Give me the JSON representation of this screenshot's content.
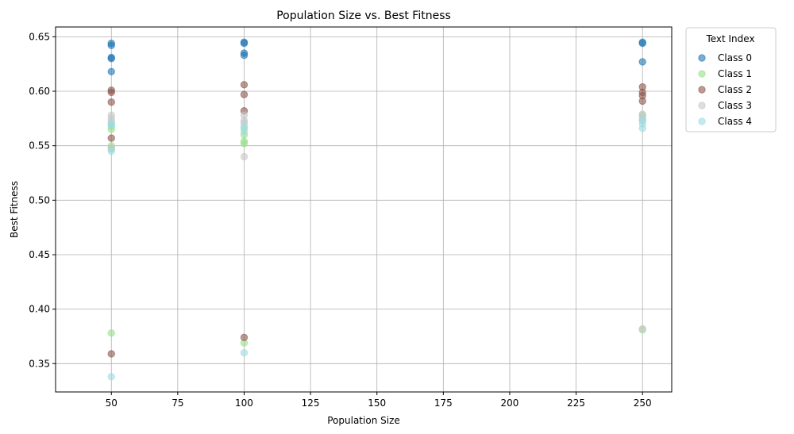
{
  "chart_data": {
    "type": "scatter",
    "title": "Population Size vs. Best Fitness",
    "xlabel": "Population Size",
    "ylabel": "Best Fitness",
    "xlim": [
      29,
      261
    ],
    "ylim": [
      0.324,
      0.659
    ],
    "xticks": [
      50,
      75,
      100,
      125,
      150,
      175,
      200,
      225,
      250
    ],
    "yticks": [
      0.35,
      0.4,
      0.45,
      0.5,
      0.55,
      0.6,
      0.65
    ],
    "ytick_labels": [
      "0.35",
      "0.40",
      "0.45",
      "0.50",
      "0.55",
      "0.60",
      "0.65"
    ],
    "grid": true,
    "legend_title": "Text Index",
    "legend_position": "outside-right-top",
    "series": [
      {
        "name": "Class 0",
        "color": "#1f77b4",
        "points": [
          [
            50,
            0.644
          ],
          [
            50,
            0.642
          ],
          [
            50,
            0.631
          ],
          [
            50,
            0.63
          ],
          [
            50,
            0.618
          ],
          [
            100,
            0.645
          ],
          [
            100,
            0.644
          ],
          [
            100,
            0.635
          ],
          [
            100,
            0.633
          ],
          [
            250,
            0.645
          ],
          [
            250,
            0.644
          ],
          [
            250,
            0.627
          ]
        ]
      },
      {
        "name": "Class 1",
        "color": "#98df8a",
        "points": [
          [
            50,
            0.568
          ],
          [
            50,
            0.565
          ],
          [
            50,
            0.55
          ],
          [
            50,
            0.547
          ],
          [
            50,
            0.378
          ],
          [
            100,
            0.566
          ],
          [
            100,
            0.56
          ],
          [
            100,
            0.554
          ],
          [
            100,
            0.552
          ],
          [
            100,
            0.369
          ],
          [
            250,
            0.578
          ],
          [
            250,
            0.573
          ],
          [
            250,
            0.381
          ]
        ]
      },
      {
        "name": "Class 2",
        "color": "#8c564b",
        "points": [
          [
            50,
            0.601
          ],
          [
            50,
            0.599
          ],
          [
            50,
            0.59
          ],
          [
            50,
            0.557
          ],
          [
            50,
            0.359
          ],
          [
            100,
            0.606
          ],
          [
            100,
            0.597
          ],
          [
            100,
            0.582
          ],
          [
            100,
            0.374
          ],
          [
            250,
            0.604
          ],
          [
            250,
            0.599
          ],
          [
            250,
            0.596
          ],
          [
            250,
            0.591
          ]
        ]
      },
      {
        "name": "Class 3",
        "color": "#c7c7c7",
        "points": [
          [
            50,
            0.578
          ],
          [
            50,
            0.575
          ],
          [
            50,
            0.572
          ],
          [
            50,
            0.548
          ],
          [
            100,
            0.578
          ],
          [
            100,
            0.573
          ],
          [
            100,
            0.571
          ],
          [
            100,
            0.54
          ],
          [
            250,
            0.579
          ],
          [
            250,
            0.576
          ],
          [
            250,
            0.382
          ]
        ]
      },
      {
        "name": "Class 4",
        "color": "#9edae5",
        "points": [
          [
            50,
            0.571
          ],
          [
            50,
            0.569
          ],
          [
            50,
            0.545
          ],
          [
            50,
            0.338
          ],
          [
            100,
            0.568
          ],
          [
            100,
            0.563
          ],
          [
            100,
            0.36
          ],
          [
            250,
            0.574
          ],
          [
            250,
            0.57
          ],
          [
            250,
            0.566
          ]
        ]
      }
    ]
  }
}
